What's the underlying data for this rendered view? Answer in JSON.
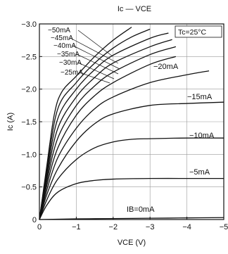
{
  "chart_data": {
    "type": "line",
    "title": "Ic — VCE",
    "xlabel": "VCE (V)",
    "ylabel": "Ic (A)",
    "xlim": [
      0,
      -5
    ],
    "ylim": [
      0,
      -3.0
    ],
    "xticks": [
      0,
      -1,
      -2,
      -3,
      -4,
      -5
    ],
    "yticks": [
      0,
      -0.5,
      -1.0,
      -1.5,
      -2.0,
      -2.5,
      -3.0
    ],
    "xtick_labels": [
      "0",
      "−1",
      "−2",
      "−3",
      "−4",
      "−5"
    ],
    "ytick_labels": [
      "0",
      "−0.5",
      "−1.0",
      "−1.5",
      "−2.0",
      "−2.5",
      "−3.0"
    ],
    "grid": true,
    "annotation": "Tc=25°C",
    "series": [
      {
        "name": "IB=0mA",
        "x": [
          0,
          -1,
          -2,
          -3,
          -4,
          -5
        ],
        "y": [
          0,
          -0.01,
          -0.015,
          -0.02,
          -0.025,
          -0.03
        ]
      },
      {
        "name": "−5mA",
        "x": [
          0,
          -0.2,
          -0.5,
          -1.0,
          -1.5,
          -2.0,
          -3.0,
          -4.0,
          -5.0
        ],
        "y": [
          0,
          -0.22,
          -0.42,
          -0.55,
          -0.6,
          -0.62,
          -0.63,
          -0.63,
          -0.63
        ]
      },
      {
        "name": "−10mA",
        "x": [
          0,
          -0.2,
          -0.5,
          -1.0,
          -1.5,
          -2.0,
          -2.5,
          -3.0,
          -4.0,
          -5.0
        ],
        "y": [
          0,
          -0.3,
          -0.62,
          -0.92,
          -1.1,
          -1.19,
          -1.23,
          -1.24,
          -1.25,
          -1.25
        ]
      },
      {
        "name": "−15mA",
        "x": [
          0,
          -0.2,
          -0.5,
          -1.0,
          -1.5,
          -2.0,
          -3.0,
          -4.0,
          -5.0
        ],
        "y": [
          0,
          -0.38,
          -0.78,
          -1.2,
          -1.47,
          -1.62,
          -1.75,
          -1.78,
          -1.8
        ]
      },
      {
        "name": "−20mA",
        "x": [
          0,
          -0.2,
          -0.5,
          -1.0,
          -1.5,
          -2.0,
          -3.0,
          -4.0,
          -4.6
        ],
        "y": [
          0,
          -0.45,
          -0.95,
          -1.4,
          -1.7,
          -1.88,
          -2.1,
          -2.22,
          -2.28
        ]
      },
      {
        "name": "−25mA",
        "x": [
          0,
          -0.2,
          -0.5,
          -1.0,
          -1.5,
          -2.0,
          -3.0,
          -3.7
        ],
        "y": [
          0,
          -0.52,
          -1.1,
          -1.6,
          -1.9,
          -2.1,
          -2.38,
          -2.5
        ]
      },
      {
        "name": "−30mA",
        "x": [
          0,
          -0.2,
          -0.5,
          -1.0,
          -1.5,
          -2.0,
          -3.0,
          -3.7
        ],
        "y": [
          0,
          -0.58,
          -1.25,
          -1.75,
          -2.05,
          -2.26,
          -2.53,
          -2.65
        ]
      },
      {
        "name": "−35mA",
        "x": [
          0,
          -0.2,
          -0.5,
          -1.0,
          -1.5,
          -2.0,
          -3.0,
          -3.6
        ],
        "y": [
          0,
          -0.64,
          -1.4,
          -1.88,
          -2.18,
          -2.4,
          -2.65,
          -2.76
        ]
      },
      {
        "name": "−40mA",
        "x": [
          0,
          -0.2,
          -0.5,
          -1.0,
          -1.5,
          -2.0,
          -3.0,
          -3.5
        ],
        "y": [
          0,
          -0.7,
          -1.55,
          -2.0,
          -2.3,
          -2.52,
          -2.78,
          -2.86
        ]
      },
      {
        "name": "−45mA",
        "x": [
          0,
          -0.2,
          -0.5,
          -1.0,
          -1.5,
          -2.0,
          -2.5,
          -3.0
        ],
        "y": [
          0,
          -0.76,
          -1.7,
          -2.1,
          -2.4,
          -2.63,
          -2.8,
          -2.92
        ]
      },
      {
        "name": "−50mA",
        "x": [
          0,
          -0.2,
          -0.4,
          -0.6,
          -1.0,
          -1.5,
          -2.0,
          -2.5
        ],
        "y": [
          0,
          -0.82,
          -1.6,
          -1.95,
          -2.2,
          -2.5,
          -2.75,
          -2.95
        ]
      }
    ]
  }
}
